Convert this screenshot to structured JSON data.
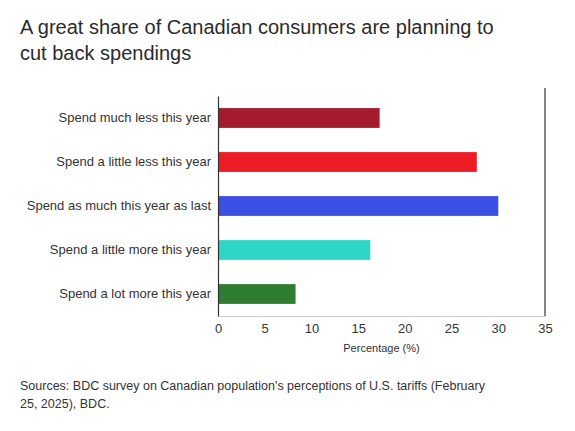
{
  "chart_data": {
    "type": "bar",
    "orientation": "horizontal",
    "title": "A great share of Canadian consumers are planning to cut back spendings",
    "x_label": "Percentage (%)",
    "source": "Sources: BDC survey on Canadian population's perceptions of U.S. tariffs (February 25, 2025), BDC.",
    "categories": [
      "Spend much less this year",
      "Spend a little less this year",
      "Spend as much this year as last",
      "Spend a little more this year",
      "Spend a lot more this year"
    ],
    "values": [
      17.3,
      27.7,
      30,
      16.3,
      8.3
    ],
    "colors": [
      "#a31b2c",
      "#ee1c24",
      "#3b4fe4",
      "#2fd6c8",
      "#2f7d32"
    ],
    "xlim": [
      0,
      35
    ],
    "xticks": [
      0,
      5,
      10,
      15,
      20,
      25,
      30,
      35
    ],
    "grid": false
  }
}
